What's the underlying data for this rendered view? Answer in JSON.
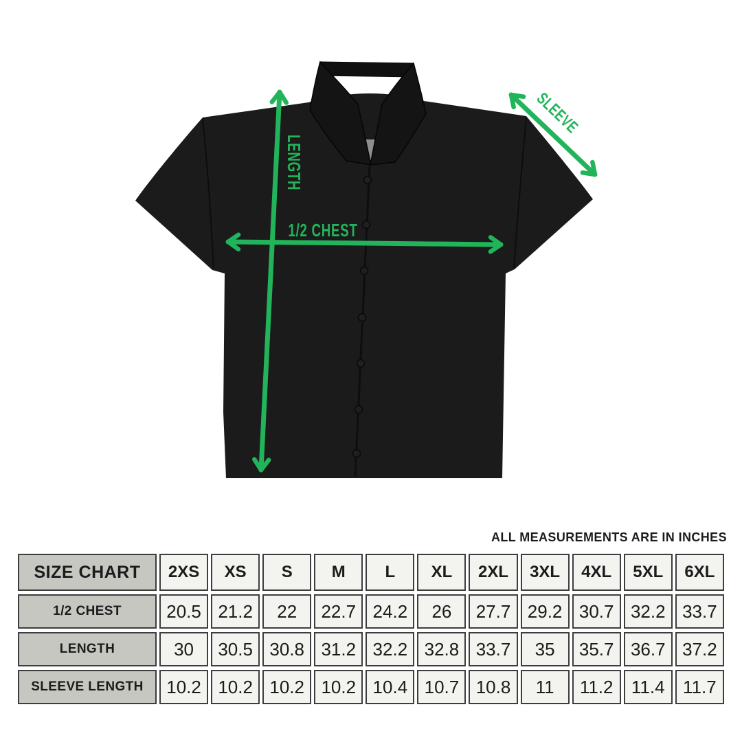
{
  "accent_green": "#22b45a",
  "diagram": {
    "length_label": "LENGTH",
    "chest_label": "1/2 CHEST",
    "sleeve_label": "SLEEVE"
  },
  "chart_data": {
    "type": "table",
    "title": "SIZE CHART",
    "unit_note": "ALL MEASUREMENTS ARE IN INCHES",
    "columns": [
      "2XS",
      "XS",
      "S",
      "M",
      "L",
      "XL",
      "2XL",
      "3XL",
      "4XL",
      "5XL",
      "6XL"
    ],
    "rows": [
      {
        "label": "1/2 CHEST",
        "values": [
          20.5,
          21.2,
          22,
          22.7,
          24.2,
          26,
          27.7,
          29.2,
          30.7,
          32.2,
          33.7
        ]
      },
      {
        "label": "LENGTH",
        "values": [
          30,
          30.5,
          30.8,
          31.2,
          32.2,
          32.8,
          33.7,
          35,
          35.7,
          36.7,
          37.2
        ]
      },
      {
        "label": "SLEEVE LENGTH",
        "values": [
          10.2,
          10.2,
          10.2,
          10.2,
          10.4,
          10.7,
          10.8,
          11,
          11.2,
          11.4,
          11.7
        ]
      }
    ]
  }
}
